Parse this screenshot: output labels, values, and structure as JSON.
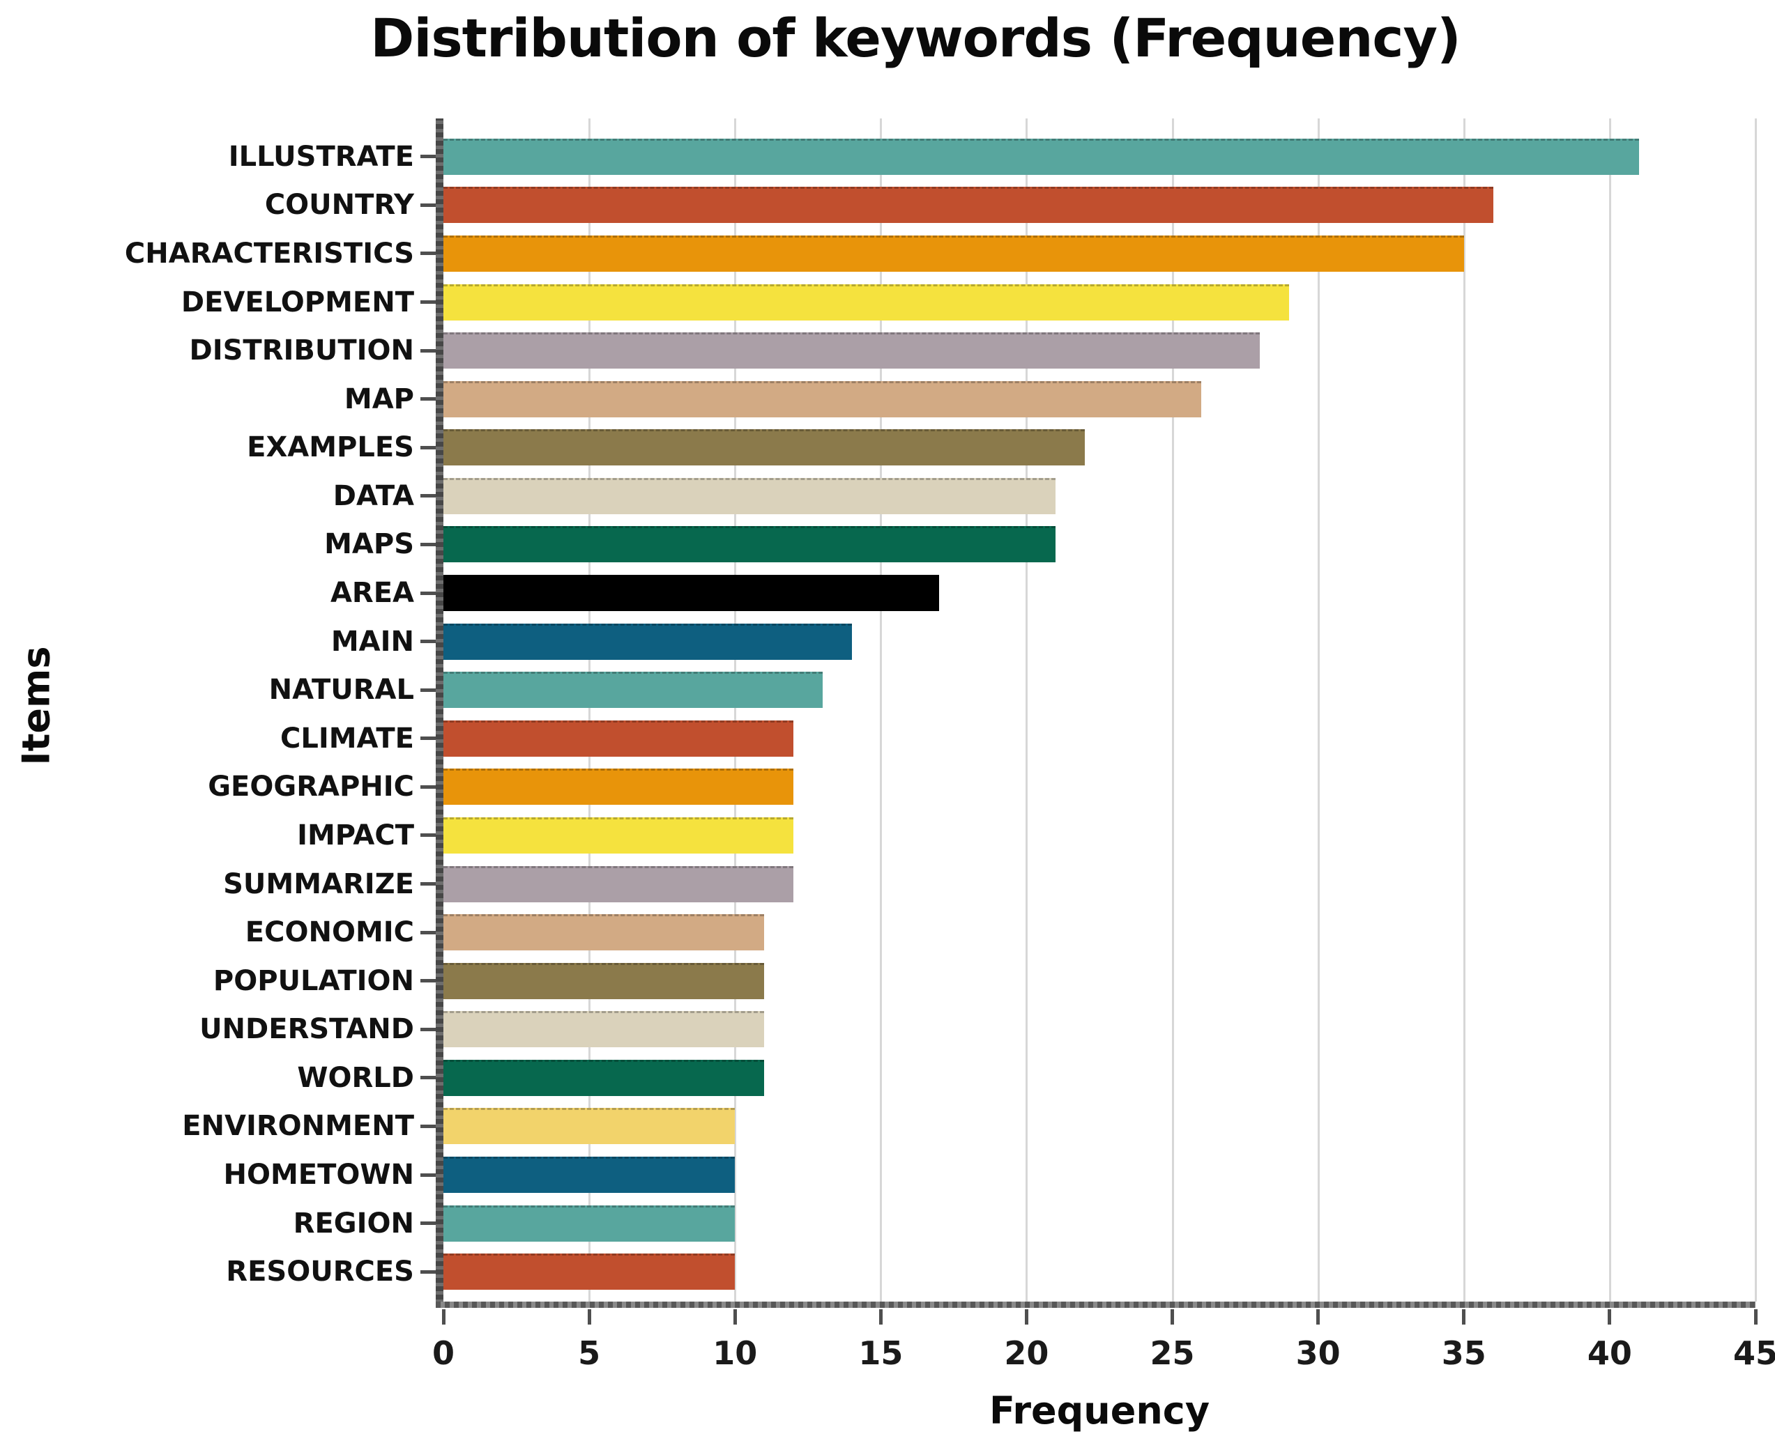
{
  "chart_data": {
    "type": "bar",
    "orientation": "horizontal",
    "title": "Distribution of keywords (Frequency)",
    "xlabel": "Frequency",
    "ylabel": "Items",
    "xlim": [
      0,
      45
    ],
    "x_ticks": [
      "0",
      "5",
      "10",
      "15",
      "20",
      "25",
      "30",
      "35",
      "40",
      "45"
    ],
    "grid": true,
    "legend": "none",
    "categories": [
      "ILLUSTRATE",
      "COUNTRY",
      "CHARACTERISTICS",
      "DEVELOPMENT",
      "DISTRIBUTION",
      "MAP",
      "EXAMPLES",
      "DATA",
      "MAPS",
      "AREA",
      "MAIN",
      "NATURAL",
      "CLIMATE",
      "GEOGRAPHIC",
      "IMPACT",
      "SUMMARIZE",
      "ECONOMIC",
      "POPULATION",
      "UNDERSTAND",
      "WORLD",
      "ENVIRONMENT",
      "HOMETOWN",
      "REGION",
      "RESOURCES"
    ],
    "values": [
      41,
      36,
      35,
      29,
      28,
      26,
      22,
      21,
      21,
      17,
      14,
      13,
      12,
      12,
      12,
      12,
      11,
      11,
      11,
      11,
      10,
      10,
      10,
      10
    ],
    "bar_colors": [
      "#58A69E",
      "#C14F2E",
      "#E8940A",
      "#F5E23E",
      "#AB9FA7",
      "#D2AA84",
      "#8B7A4B",
      "#DAD2BB",
      "#07684E",
      "#000000",
      "#0E5F80",
      "#58A69E",
      "#C14F2E",
      "#E8940A",
      "#F5E23E",
      "#AB9FA7",
      "#D2AA84",
      "#8B7A4B",
      "#DAD2BB",
      "#07684E",
      "#F2D36B",
      "#0E5F80",
      "#58A69E",
      "#C14F2E"
    ]
  },
  "colors": {
    "background": "#ffffff",
    "grid": "#d7d7d7",
    "axis": "#4f4f4f",
    "text": "#0a0a0a"
  }
}
